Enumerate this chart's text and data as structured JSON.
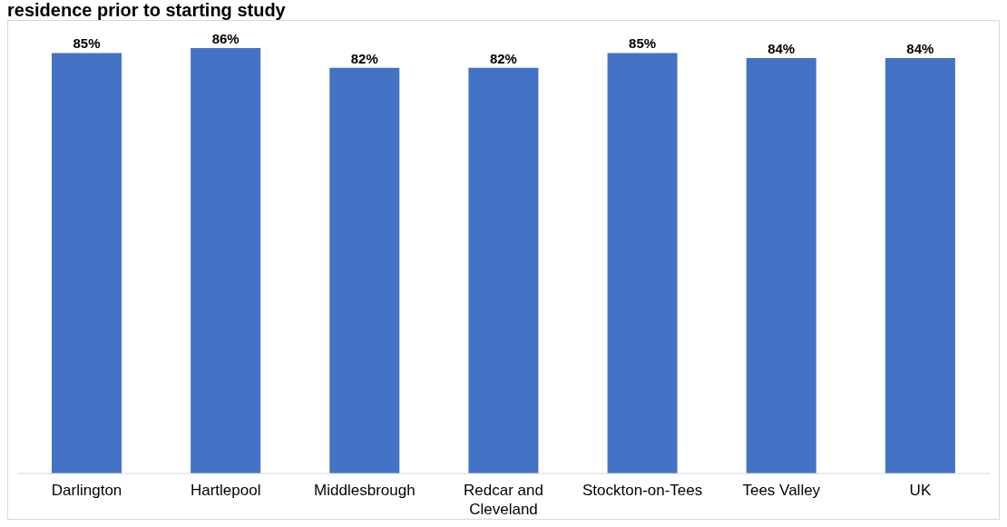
{
  "chart_data": {
    "type": "bar",
    "title": "residence prior to starting study",
    "categories": [
      "Darlington",
      "Hartlepool",
      "Middlesbrough",
      "Redcar and Cleveland",
      "Stockton-on-Tees",
      "Tees Valley",
      "UK"
    ],
    "values": [
      85,
      86,
      82,
      82,
      85,
      84,
      84
    ],
    "value_labels": [
      "85%",
      "86%",
      "82%",
      "82%",
      "85%",
      "84%",
      "84%"
    ],
    "color": "#4472c4",
    "tick_labels": "x"
  }
}
